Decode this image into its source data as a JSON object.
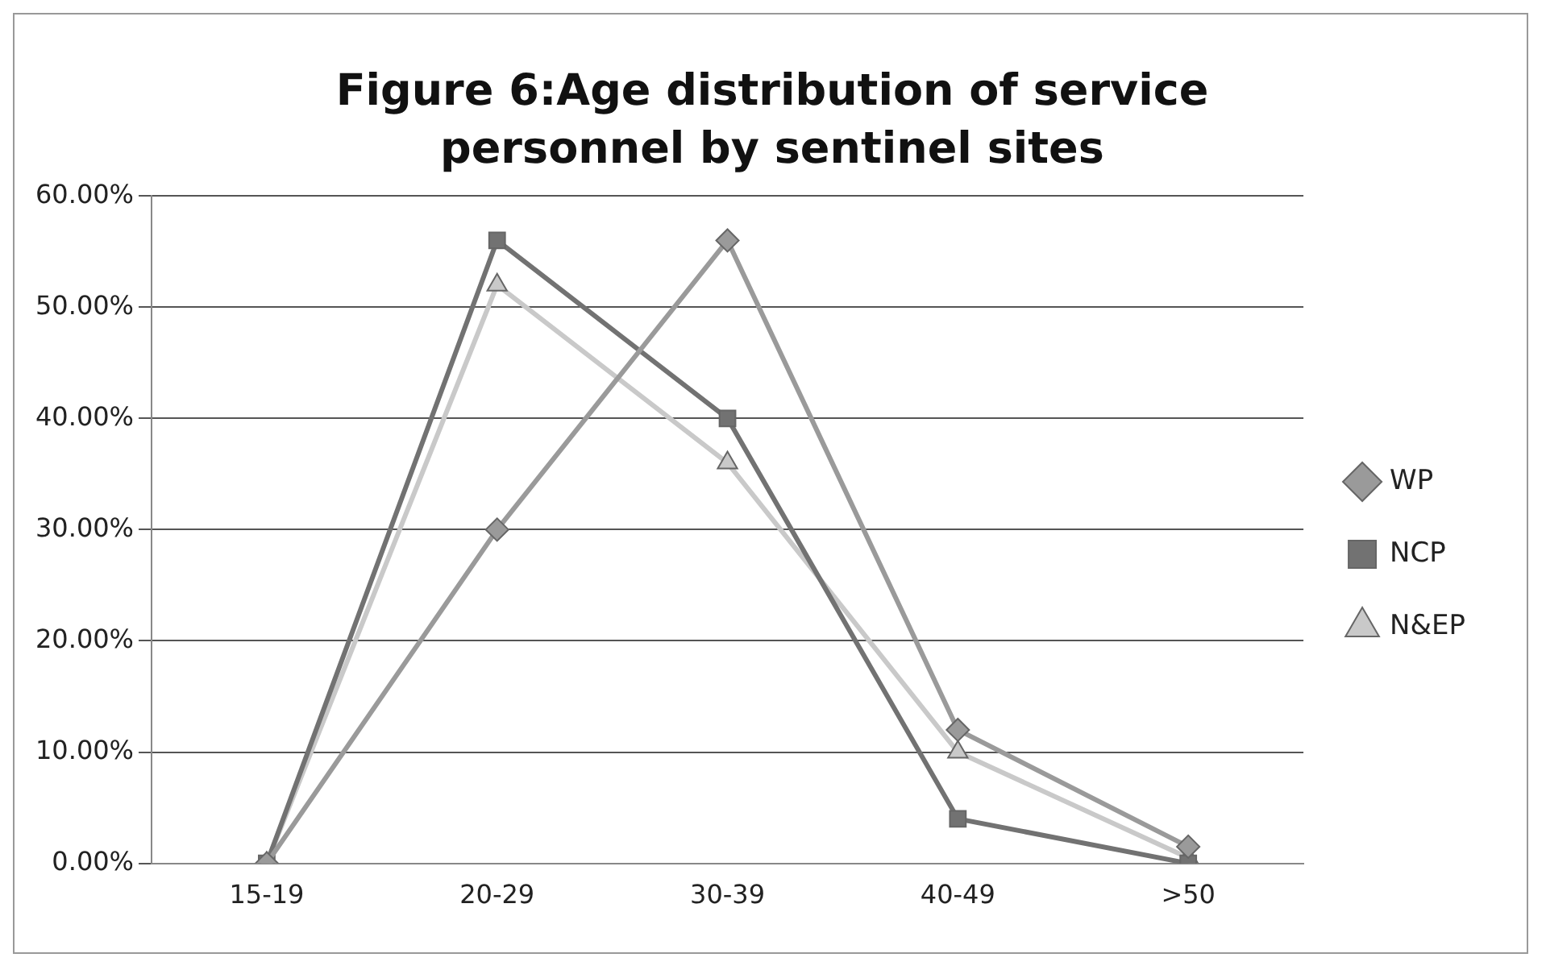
{
  "chart_data": {
    "type": "line",
    "title": "Figure 6:Age distribution of service personnel by sentinel sites",
    "categories": [
      "15-19",
      "20-29",
      "30-39",
      "40-49",
      ">50"
    ],
    "series": [
      {
        "name": "WP",
        "color": "#9a9a9a",
        "marker": "diamond",
        "values": [
          0,
          30,
          56,
          12,
          1.5
        ]
      },
      {
        "name": "NCP",
        "color": "#727272",
        "marker": "square",
        "values": [
          0,
          56,
          40,
          4,
          0
        ]
      },
      {
        "name": "N&EP",
        "color": "#c9c9c9",
        "marker": "triangle",
        "values": [
          0,
          52,
          36,
          10,
          0.5
        ]
      }
    ],
    "ylim": [
      0,
      60
    ],
    "yticks": [
      {
        "value": 0,
        "label": "0.00%"
      },
      {
        "value": 10,
        "label": "10.00%"
      },
      {
        "value": 20,
        "label": "20.00%"
      },
      {
        "value": 30,
        "label": "30.00%"
      },
      {
        "value": 40,
        "label": "40.00%"
      },
      {
        "value": 50,
        "label": "50.00%"
      },
      {
        "value": 60,
        "label": "60.00%"
      }
    ],
    "grid": "y",
    "legend": "right",
    "line_style": "solid"
  }
}
